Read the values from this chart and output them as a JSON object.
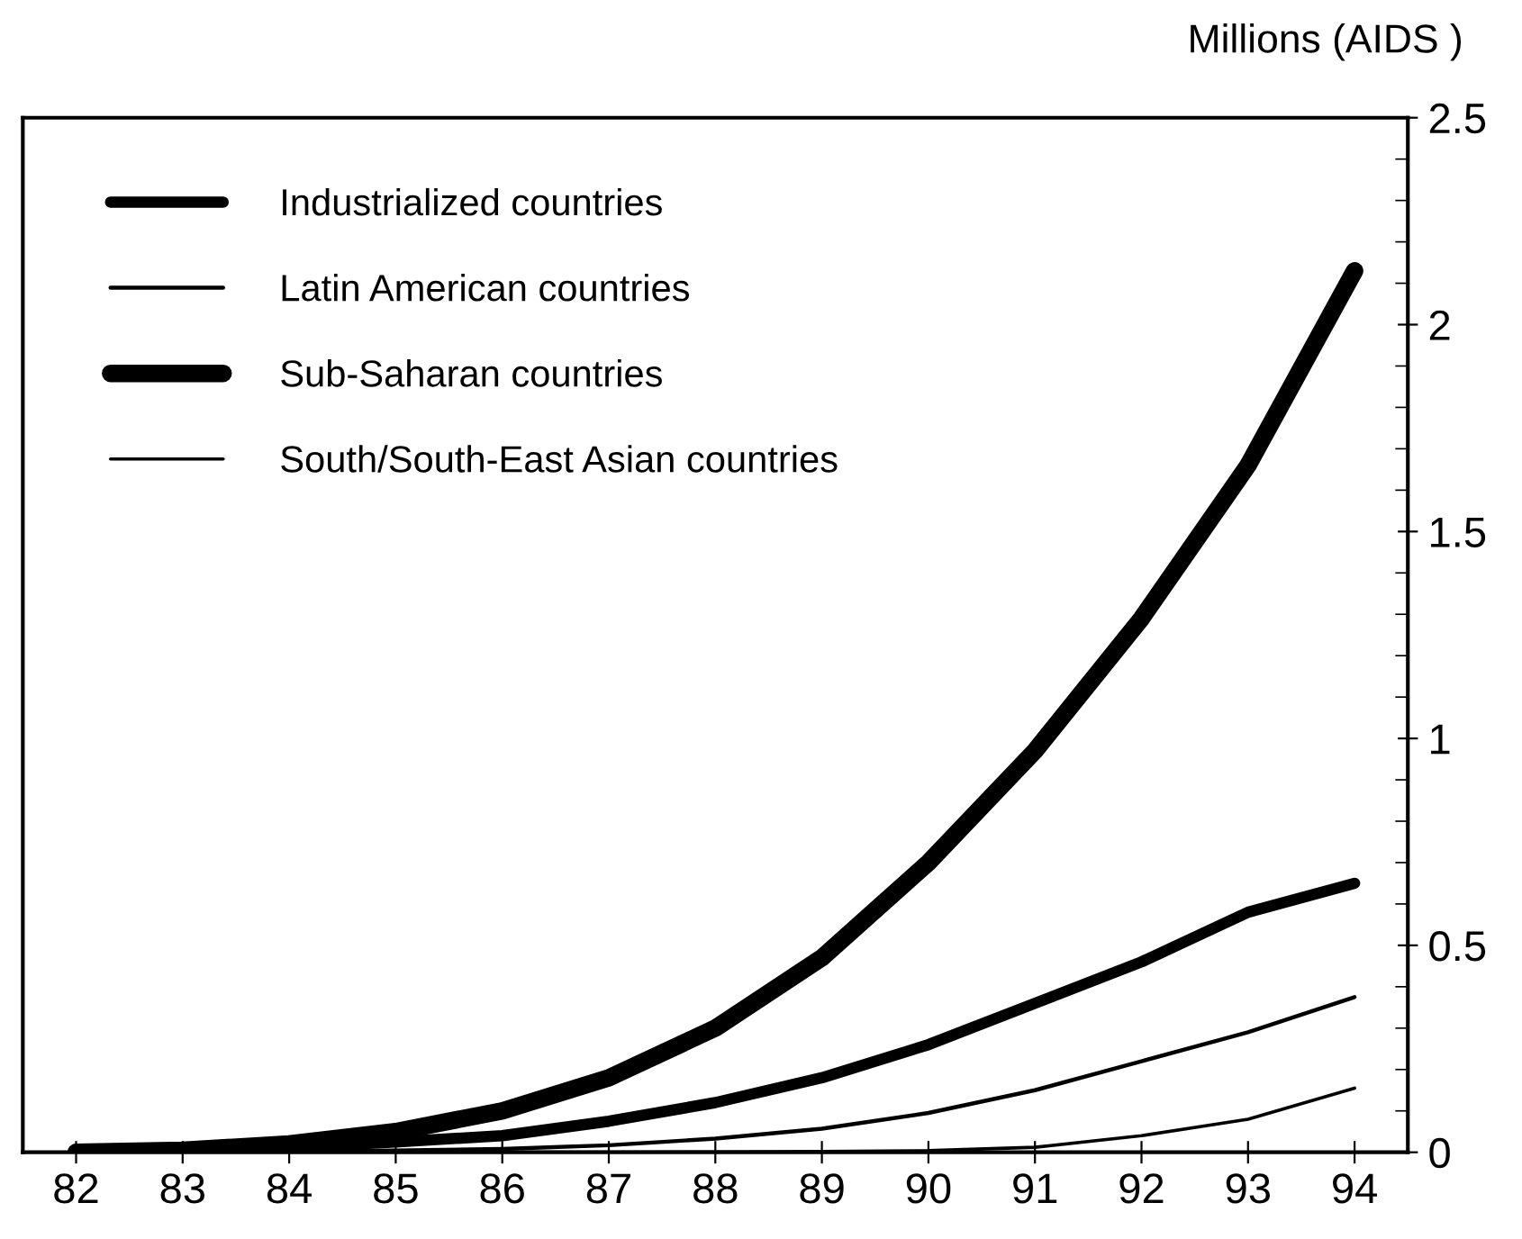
{
  "chart_data": {
    "type": "line",
    "ylabel": "Millions (AIDS )",
    "x": [
      82,
      83,
      84,
      85,
      86,
      87,
      88,
      89,
      90,
      91,
      92,
      93,
      94
    ],
    "series": [
      {
        "name": "Industrialized countries",
        "color": "#000000",
        "values": [
          0,
          0.005,
          0.012,
          0.025,
          0.04,
          0.075,
          0.12,
          0.18,
          0.26,
          0.36,
          0.46,
          0.58,
          0.65
        ]
      },
      {
        "name": "Latin American countries",
        "color": "#000000",
        "values": [
          0,
          0.001,
          0.002,
          0.004,
          0.008,
          0.017,
          0.033,
          0.057,
          0.095,
          0.15,
          0.22,
          0.29,
          0.375
        ]
      },
      {
        "name": "Sub-Saharan countries",
        "color": "#000000",
        "values": [
          0,
          0.005,
          0.02,
          0.05,
          0.1,
          0.18,
          0.3,
          0.47,
          0.7,
          0.97,
          1.29,
          1.66,
          2.13
        ]
      },
      {
        "name": "South/South-East Asian countries",
        "color": "#000000",
        "values": [
          0,
          0,
          0,
          0,
          0,
          0,
          0.001,
          0.002,
          0.004,
          0.012,
          0.04,
          0.08,
          0.155
        ]
      }
    ],
    "xlim": [
      81.5,
      94.5
    ],
    "xticks": [
      82,
      83,
      84,
      85,
      86,
      87,
      88,
      89,
      90,
      91,
      92,
      93,
      94
    ],
    "ylim": [
      0,
      2.5
    ],
    "yticks": [
      0,
      {
        "value": 0.5,
        "label": "0.5"
      },
      1,
      {
        "value": 1.5,
        "label": "1.5"
      },
      2,
      {
        "value": 2.5,
        "label": "2.5"
      }
    ],
    "grid": false,
    "legend": "top left",
    "marker": "none",
    "line_style": "solid"
  }
}
